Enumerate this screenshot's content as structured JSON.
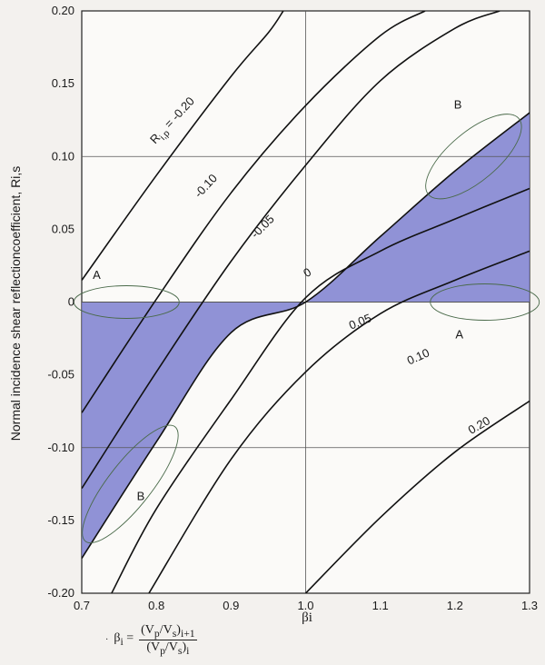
{
  "chart_data": {
    "type": "line",
    "xlabel": "βi",
    "ylabel": "Normal incidence shear reflectioncoefficient, Ri,s",
    "xlim": [
      0.7,
      1.3
    ],
    "ylim": [
      -0.2,
      0.2
    ],
    "x_ticks": [
      "0.7",
      "0.8",
      "0.9",
      "1.0",
      "1.1",
      "1.2",
      "1.3"
    ],
    "y_ticks": [
      "-0.20",
      "-0.15",
      "-0.10",
      "-0.05",
      "0",
      "0.05",
      "0.10",
      "0.15",
      "0.20"
    ],
    "grid": "major lines at x = 1.0 and y = -0.10, 0, 0.10",
    "shaded_color": "#7d7fd0",
    "line_color": "#111111",
    "series": [
      {
        "name": "Ri,p = -0.20",
        "x": [
          0.7,
          0.8,
          0.9,
          0.95,
          0.97
        ],
        "y": [
          0.015,
          0.087,
          0.155,
          0.185,
          0.2
        ]
      },
      {
        "name": "-0.10",
        "x": [
          0.7,
          0.8,
          0.9,
          1.0,
          1.1,
          1.16
        ],
        "y": [
          -0.076,
          0.002,
          0.075,
          0.135,
          0.183,
          0.2
        ]
      },
      {
        "name": "-0.05",
        "x": [
          0.7,
          0.8,
          0.9,
          1.0,
          1.1,
          1.2,
          1.26
        ],
        "y": [
          -0.128,
          -0.048,
          0.028,
          0.094,
          0.152,
          0.188,
          0.2
        ]
      },
      {
        "name": "0",
        "x": [
          0.7,
          0.8,
          0.9,
          1.0,
          1.1,
          1.2,
          1.3
        ],
        "y": [
          -0.176,
          -0.096,
          -0.021,
          0.0,
          0.045,
          0.09,
          0.13
        ]
      },
      {
        "name": "0.05",
        "x": [
          0.74,
          0.8,
          0.9,
          1.0,
          1.1,
          1.2,
          1.3
        ],
        "y": [
          -0.2,
          -0.142,
          -0.067,
          0.003,
          0.035,
          0.057,
          0.078
        ]
      },
      {
        "name": "0.10",
        "x": [
          0.79,
          0.9,
          1.0,
          1.1,
          1.2,
          1.3
        ],
        "y": [
          -0.2,
          -0.108,
          -0.048,
          -0.008,
          0.015,
          0.035
        ]
      },
      {
        "name": "0.20",
        "x": [
          1.0,
          1.1,
          1.2,
          1.3
        ],
        "y": [
          -0.2,
          -0.148,
          -0.103,
          -0.068
        ]
      }
    ],
    "annotations": [
      "A",
      "A",
      "B",
      "B"
    ]
  }
}
